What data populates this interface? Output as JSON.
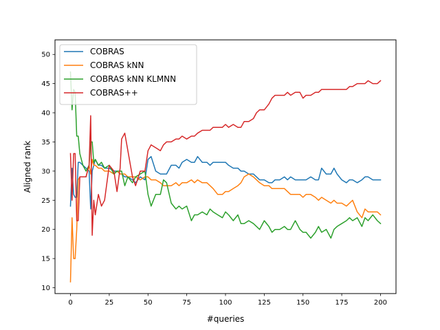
{
  "chart_data": {
    "type": "line",
    "title": "",
    "xlabel": "#queries",
    "ylabel": "Aligned rank",
    "xlim": [
      -10,
      210
    ],
    "ylim": [
      9,
      52.5
    ],
    "xticks": [
      0,
      25,
      50,
      75,
      100,
      125,
      150,
      175,
      200
    ],
    "yticks": [
      10,
      15,
      20,
      25,
      30,
      35,
      40,
      45,
      50
    ],
    "grid": false,
    "legend": "top-left",
    "x_points": [
      0,
      1,
      2,
      3,
      4,
      5,
      6,
      8,
      10,
      12,
      13,
      14,
      15,
      16,
      18,
      20,
      22,
      25,
      28,
      30,
      32,
      33,
      35,
      37,
      40,
      42,
      45,
      48,
      50,
      52,
      55,
      58,
      60,
      62,
      65,
      68,
      70,
      72,
      75,
      78,
      80,
      82,
      85,
      88,
      90,
      92,
      95,
      98,
      100,
      102,
      105,
      108,
      110,
      112,
      115,
      118,
      120,
      122,
      125,
      128,
      130,
      132,
      135,
      138,
      140,
      142,
      145,
      148,
      150,
      152,
      155,
      158,
      160,
      162,
      165,
      168,
      170,
      172,
      175,
      178,
      180,
      182,
      185,
      188,
      190,
      192,
      195,
      198,
      200
    ],
    "series": [
      {
        "name": "COBRAS",
        "color": "#1f77b4",
        "values": [
          24,
          30.5,
          26,
          25.5,
          25.5,
          31.5,
          31.5,
          31,
          30.5,
          30,
          23.5,
          30,
          31,
          32,
          31,
          31,
          30.5,
          30.5,
          30,
          30,
          29.5,
          29.5,
          29,
          29,
          28.5,
          28,
          29,
          28.5,
          32,
          32.5,
          30,
          29.5,
          29.5,
          29.5,
          31,
          31,
          30.5,
          31.5,
          32,
          31.5,
          31.5,
          32.5,
          31.5,
          31.5,
          31,
          31.5,
          31.5,
          31.5,
          31.5,
          31,
          30.5,
          30.5,
          30,
          30,
          29.5,
          29.5,
          29,
          28.5,
          28.5,
          28,
          28,
          28.5,
          28.5,
          29,
          28.5,
          29,
          28.5,
          28.5,
          28.5,
          28.5,
          29,
          28.5,
          28.5,
          30.5,
          29.5,
          29.5,
          30.5,
          29.5,
          28.5,
          28,
          28.5,
          28.5,
          28,
          28.5,
          29,
          29,
          28.5,
          28.5,
          28.5
        ]
      },
      {
        "name": "COBRAS kNN",
        "color": "#ff7f0e",
        "values": [
          11,
          22,
          15,
          15,
          20,
          28.5,
          29,
          29,
          29,
          31,
          29.5,
          32,
          31,
          31,
          30.5,
          30.5,
          30,
          30,
          29.5,
          30,
          29.5,
          29.5,
          29.5,
          29,
          29,
          29,
          28.5,
          29,
          29,
          28.5,
          28.5,
          28,
          27.5,
          27.5,
          27.5,
          28,
          27.5,
          28,
          28,
          28.5,
          28,
          28.5,
          28,
          28,
          27.5,
          27,
          26,
          26,
          26.5,
          26.5,
          27,
          27.5,
          28,
          29,
          29.5,
          29,
          28.5,
          28,
          27.5,
          27.5,
          27,
          27,
          27,
          27,
          26.5,
          26,
          26,
          26,
          25.5,
          26,
          26,
          25.5,
          25,
          25.5,
          25,
          24.5,
          25,
          24.5,
          24.5,
          24,
          24.5,
          25,
          23,
          22,
          23.5,
          23,
          23,
          23,
          22.5
        ]
      },
      {
        "name": "COBRAS kNN  KLMNN",
        "color": "#2ca02c",
        "values": [
          47,
          40.5,
          44,
          43.5,
          36,
          36,
          33,
          31,
          30,
          31,
          35,
          35,
          31.5,
          32,
          31,
          31.5,
          30.5,
          31,
          29.5,
          30,
          30,
          30,
          27.5,
          29,
          28,
          29,
          29.5,
          30,
          26,
          24,
          26,
          26,
          28.5,
          28,
          24.5,
          23.5,
          24,
          23.5,
          24,
          21.5,
          22.5,
          22.5,
          23,
          22.5,
          23.5,
          23,
          22.5,
          22,
          23,
          22.5,
          21.5,
          22.5,
          21,
          21,
          21.5,
          21,
          20.5,
          20,
          21.5,
          20.5,
          19.5,
          20,
          20,
          20.5,
          20,
          20,
          21.5,
          20,
          19.5,
          19.5,
          18.5,
          19.5,
          20.5,
          19.5,
          20,
          18.5,
          20,
          20.5,
          21,
          21.5,
          22,
          21.5,
          22,
          20.5,
          22,
          21.5,
          22.5,
          21.5,
          21
        ]
      },
      {
        "name": "COBRAS++",
        "color": "#d62728",
        "values": [
          33,
          25,
          33,
          33,
          21.5,
          21.5,
          29,
          29,
          29,
          31,
          39.5,
          19,
          25,
          22.5,
          26,
          24,
          25,
          31,
          30,
          26.5,
          30.5,
          35.5,
          36.5,
          33.5,
          29,
          27.5,
          30,
          30,
          33.5,
          34.5,
          34,
          33.5,
          34.5,
          35,
          35,
          35.5,
          35.5,
          36,
          35.5,
          36,
          36,
          36.5,
          37,
          37,
          37,
          37.5,
          37.5,
          37.5,
          38,
          37.5,
          38,
          37.5,
          37.5,
          38.5,
          38.5,
          39,
          40,
          40.5,
          40.5,
          41.5,
          42.5,
          43,
          43,
          43,
          43.5,
          43,
          43.5,
          43.5,
          42.5,
          43,
          43,
          43.5,
          43.5,
          44,
          44,
          44,
          44,
          44,
          44,
          44,
          44.5,
          44.5,
          45,
          45,
          45,
          45.5,
          45,
          45,
          45.5
        ]
      }
    ]
  }
}
